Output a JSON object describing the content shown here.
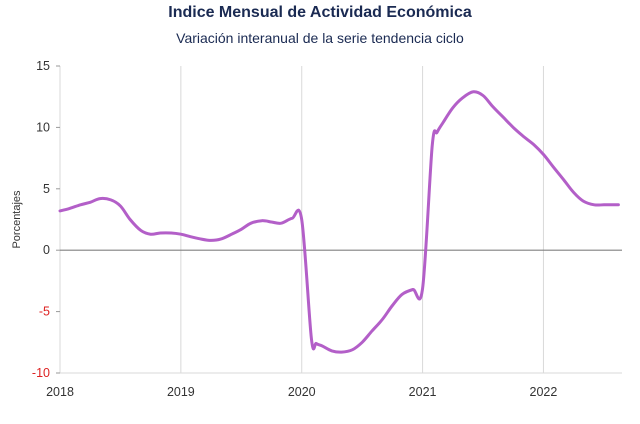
{
  "chart_data": {
    "type": "line",
    "title": "Indice Mensual de  Actividad Económica",
    "subtitle": "Variación interanual de la serie tendencia ciclo",
    "ylabel": "Porcentajes",
    "xlabel": "",
    "ylim": [
      -10,
      15
    ],
    "xlim": [
      2018,
      2022.65
    ],
    "yticks": [
      {
        "v": 15,
        "label": "15"
      },
      {
        "v": 10,
        "label": "10"
      },
      {
        "v": 5,
        "label": "5"
      },
      {
        "v": 0,
        "label": "0"
      },
      {
        "v": -5,
        "label": "-5"
      },
      {
        "v": -10,
        "label": "-10"
      }
    ],
    "xticks": [
      {
        "v": 2018,
        "label": "2018"
      },
      {
        "v": 2019,
        "label": "2019"
      },
      {
        "v": 2020,
        "label": "2020"
      },
      {
        "v": 2021,
        "label": "2021"
      },
      {
        "v": 2022,
        "label": "2022"
      }
    ],
    "grid": {
      "vertical": true,
      "horizontal": false
    },
    "colors": {
      "line": "#b35fc8",
      "grid": "#d9d9d9",
      "zero_line": "#808080",
      "title": "#1a2a52",
      "negative_tick": "#dd2222"
    },
    "series": [
      {
        "x": [
          2018.0,
          2018.08,
          2018.17,
          2018.25,
          2018.33,
          2018.42,
          2018.5,
          2018.58,
          2018.67,
          2018.75,
          2018.83,
          2018.92,
          2019.0,
          2019.08,
          2019.17,
          2019.25,
          2019.33,
          2019.42,
          2019.5,
          2019.58,
          2019.67,
          2019.75,
          2019.83,
          2019.92,
          2020.0,
          2020.08,
          2020.12,
          2020.17,
          2020.25,
          2020.33,
          2020.42,
          2020.5,
          2020.58,
          2020.67,
          2020.75,
          2020.83,
          2020.92,
          2021.0,
          2021.08,
          2021.12,
          2021.17,
          2021.25,
          2021.33,
          2021.42,
          2021.5,
          2021.58,
          2021.67,
          2021.75,
          2021.83,
          2021.92,
          2022.0,
          2022.08,
          2022.17,
          2022.25,
          2022.33,
          2022.42,
          2022.5,
          2022.58,
          2022.62
        ],
        "values": [
          3.2,
          3.4,
          3.7,
          3.9,
          4.2,
          4.1,
          3.6,
          2.5,
          1.6,
          1.3,
          1.4,
          1.4,
          1.3,
          1.1,
          0.9,
          0.8,
          0.9,
          1.3,
          1.7,
          2.2,
          2.4,
          2.3,
          2.2,
          2.6,
          2.5,
          -7.2,
          -7.6,
          -7.8,
          -8.2,
          -8.3,
          -8.1,
          -7.5,
          -6.6,
          -5.6,
          -4.5,
          -3.6,
          -3.2,
          -3.1,
          8.5,
          9.6,
          10.4,
          11.6,
          12.4,
          12.9,
          12.6,
          11.7,
          10.8,
          10.0,
          9.3,
          8.6,
          7.8,
          6.8,
          5.7,
          4.7,
          4.0,
          3.7,
          3.7,
          3.7,
          3.7
        ]
      }
    ]
  }
}
